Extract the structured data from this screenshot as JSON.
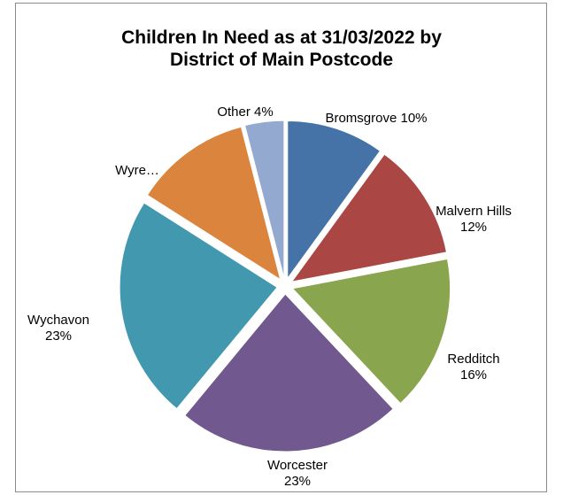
{
  "chart_data": {
    "type": "pie",
    "title_lines": [
      "Children In Need as at 31/03/2022 by",
      "District of Main Postcode"
    ],
    "slices": [
      {
        "name": "Bromsgrove",
        "value": 10,
        "label_lines": [
          "Bromsgrove 10%"
        ],
        "color": "#4572A7"
      },
      {
        "name": "Malvern Hills",
        "value": 12,
        "label_lines": [
          "Malvern Hills",
          "12%"
        ],
        "color": "#AA4643"
      },
      {
        "name": "Redditch",
        "value": 16,
        "label_lines": [
          "Redditch",
          "16%"
        ],
        "color": "#89A54E"
      },
      {
        "name": "Worcester",
        "value": 23,
        "label_lines": [
          "Worcester",
          "23%"
        ],
        "color": "#71588F"
      },
      {
        "name": "Wychavon",
        "value": 23,
        "label_lines": [
          "Wychavon",
          "23%"
        ],
        "color": "#4198AF"
      },
      {
        "name": "Wyre Forest",
        "value": 12,
        "label_lines": [
          "Wyre…"
        ],
        "color": "#DB843D"
      },
      {
        "name": "Other",
        "value": 4,
        "label_lines": [
          "Other  4%"
        ],
        "color": "#93A9CF"
      }
    ],
    "legend": "none",
    "start_angle": "12 o'clock, clockwise"
  }
}
